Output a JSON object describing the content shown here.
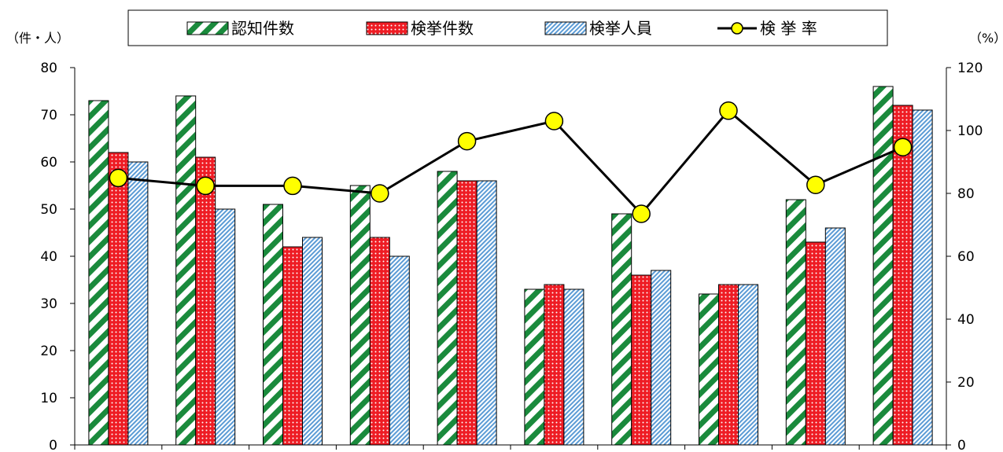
{
  "chart_data": {
    "type": "bar",
    "categories": [
      "",
      "",
      "",
      "",
      "",
      "",
      "",
      "",
      "",
      ""
    ],
    "series": [
      {
        "name": "認知件数",
        "type": "bar",
        "axis": "left",
        "pattern": "diagonal-stripes",
        "color": "#1a8a3c",
        "values": [
          73,
          74,
          51,
          55,
          58,
          33,
          49,
          32,
          52,
          76
        ]
      },
      {
        "name": "検挙件数",
        "type": "bar",
        "axis": "left",
        "pattern": "dots",
        "color": "#ee1c24",
        "values": [
          62,
          61,
          42,
          44,
          56,
          34,
          36,
          34,
          43,
          72
        ]
      },
      {
        "name": "検挙人員",
        "type": "bar",
        "axis": "left",
        "pattern": "fine-diagonal",
        "color": "#5b9bd5",
        "values": [
          60,
          50,
          44,
          40,
          56,
          33,
          37,
          34,
          46,
          71
        ]
      },
      {
        "name": "検 挙 率",
        "type": "line",
        "axis": "right",
        "color": "#000000",
        "marker_color": "#ffff00",
        "values": [
          84.9,
          82.4,
          82.4,
          80.0,
          96.6,
          103.0,
          73.5,
          106.3,
          82.7,
          94.7
        ]
      }
    ],
    "y_left": {
      "unit": "（件・人）",
      "min": 0,
      "max": 80,
      "ticks": [
        0,
        10,
        20,
        30,
        40,
        50,
        60,
        70,
        80
      ]
    },
    "y_right": {
      "unit": "（%）",
      "min": 0,
      "max": 120,
      "ticks": [
        0,
        20,
        40,
        60,
        80,
        100,
        120
      ]
    },
    "grid": false,
    "legend_position": "top"
  }
}
